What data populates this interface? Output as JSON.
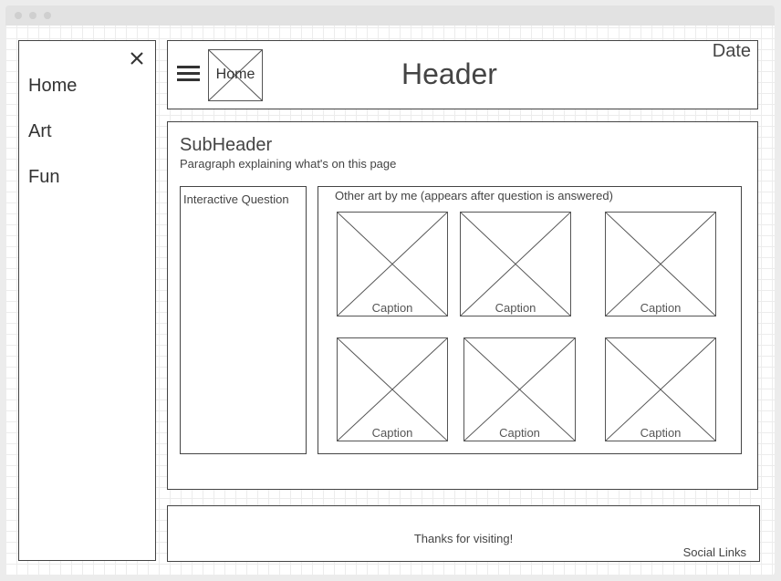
{
  "sidebar": {
    "close_icon": "close-icon",
    "items": [
      {
        "label": "Home"
      },
      {
        "label": "Art"
      },
      {
        "label": "Fun"
      }
    ]
  },
  "header": {
    "menu_icon": "hamburger-icon",
    "home_label": "Home",
    "title": "Header",
    "date": "Date"
  },
  "content": {
    "subheader": "SubHeader",
    "paragraph": "Paragraph explaining what's on this page",
    "question_label": "Interactive Question",
    "gallery": {
      "title": "Other art by me (appears after question is answered)",
      "items": [
        {
          "caption": "Caption"
        },
        {
          "caption": "Caption"
        },
        {
          "caption": "Caption"
        },
        {
          "caption": "Caption"
        },
        {
          "caption": "Caption"
        },
        {
          "caption": "Caption"
        }
      ]
    }
  },
  "footer": {
    "thanks": "Thanks for visiting!",
    "social": "Social Links"
  }
}
